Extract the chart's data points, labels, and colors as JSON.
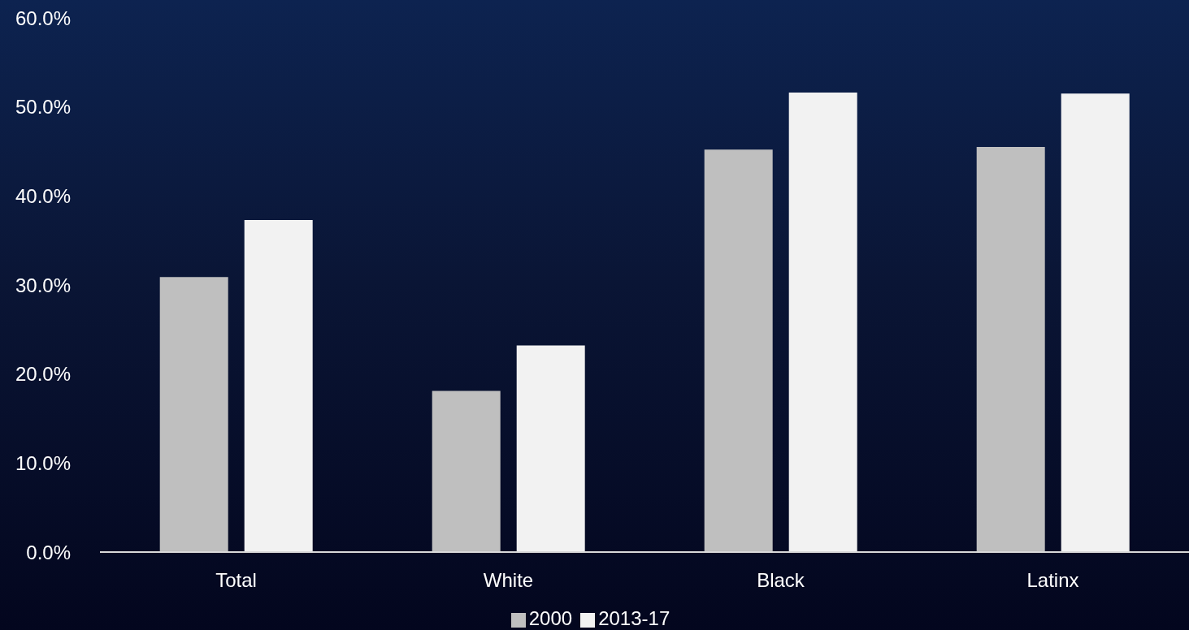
{
  "chart_data": {
    "type": "bar",
    "categories": [
      "Total",
      "White",
      "Black",
      "Latinx"
    ],
    "series": [
      {
        "name": "2000",
        "color": "#bfbfbf",
        "values": [
          30.9,
          18.1,
          45.2,
          45.5
        ]
      },
      {
        "name": "2013-17",
        "color": "#f2f2f2",
        "values": [
          37.3,
          23.2,
          51.6,
          51.5
        ]
      }
    ],
    "ylim": [
      0,
      60
    ],
    "yticks": [
      {
        "value": 0,
        "label": "0.0%"
      },
      {
        "value": 10,
        "label": "10.0%"
      },
      {
        "value": 20,
        "label": "20.0%"
      },
      {
        "value": 30,
        "label": "30.0%"
      },
      {
        "value": 40,
        "label": "40.0%"
      },
      {
        "value": 50,
        "label": "50.0%"
      },
      {
        "value": 60,
        "label": "60.0%"
      }
    ],
    "grid": false,
    "legend": "bottom"
  }
}
